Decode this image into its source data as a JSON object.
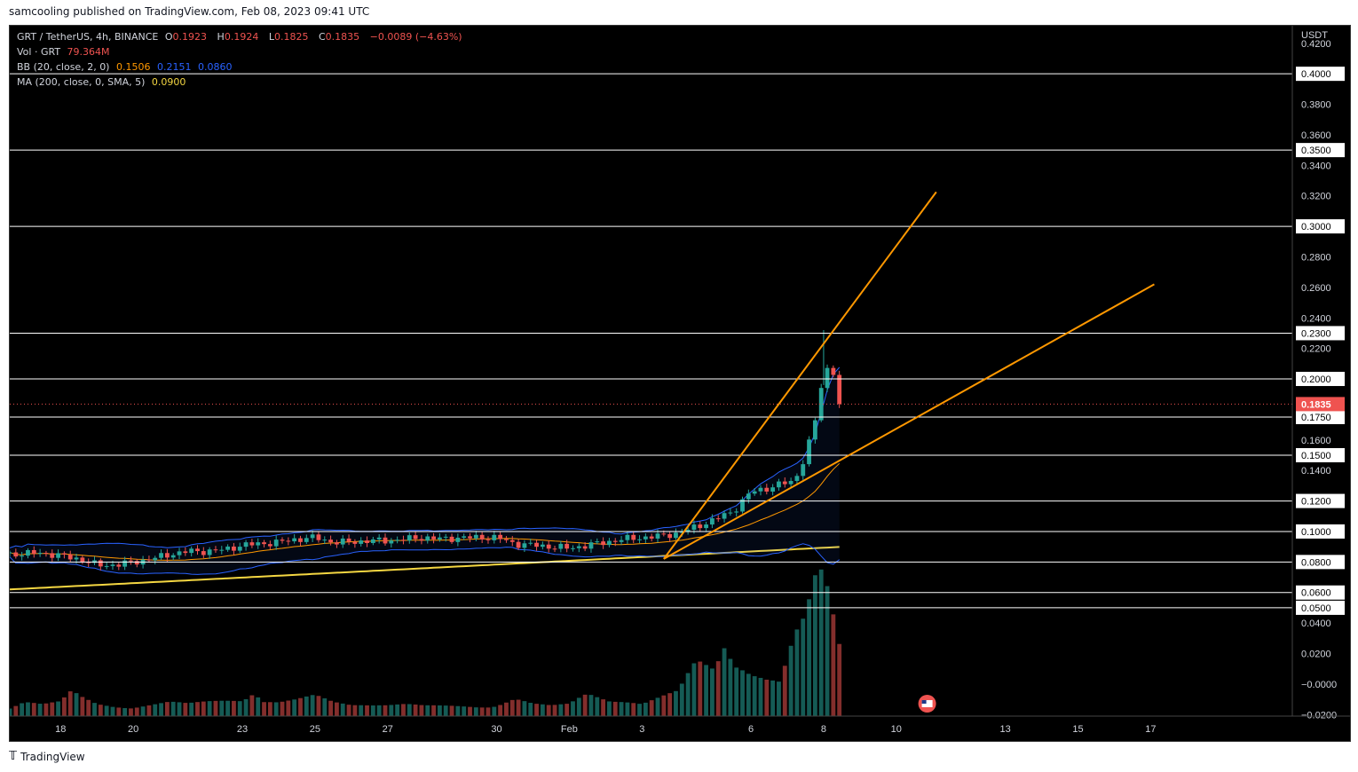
{
  "header": {
    "caption": "samcooling published on TradingView.com, Feb 08, 2023 09:41 UTC"
  },
  "legend": {
    "symbol": "GRT / TetherUS, 4h, BINANCE",
    "o_label": "O",
    "o": "0.1923",
    "h_label": "H",
    "h": "0.1924",
    "l_label": "L",
    "l": "0.1825",
    "c_label": "C",
    "c": "0.1835",
    "change": "−0.0089 (−4.63%)",
    "vol_label": "Vol · GRT",
    "vol": "79.364M",
    "bb_label": "BB (20, close, 2, 0)",
    "bb_basis": "0.1506",
    "bb_upper": "0.2151",
    "bb_lower": "0.0860",
    "ma_label": "MA (200, close, 0, SMA, 5)",
    "ma": "0.0900"
  },
  "footer": {
    "brand": "TradingView"
  },
  "colors": {
    "up": "#26a69a",
    "down": "#ef5350",
    "bb_basis": "#ff9800",
    "bb_band": "#2962ff",
    "ma": "#f5d742",
    "trendline": "#ff9800",
    "level": "#ffffff",
    "price_tag": "#ef5350"
  },
  "chart_data": {
    "type": "candlestick",
    "title": "GRT / TetherUS, 4h, BINANCE",
    "currency_label": "USDT",
    "y_ticks": [
      "0.4200",
      "0.3800",
      "0.3600",
      "0.3400",
      "0.3200",
      "0.2800",
      "0.2600",
      "0.2400",
      "0.2200",
      "0.1600",
      "0.1400",
      "0.0400",
      "0.0200",
      "−0.0000",
      "−0.0200"
    ],
    "level_labels": [
      "0.4000",
      "0.3500",
      "0.3000",
      "0.2300",
      "0.2000",
      "0.1750",
      "0.1500",
      "0.1200",
      "0.1000",
      "0.0800",
      "0.0600",
      "0.0500"
    ],
    "horizontal_levels": [
      0.4,
      0.35,
      0.3,
      0.23,
      0.2,
      0.175,
      0.15,
      0.12,
      0.1,
      0.08,
      0.06,
      0.05
    ],
    "last_price": 0.1835,
    "last_price_label": "0.1835",
    "x_ticks": [
      {
        "label": "18",
        "day": 18
      },
      {
        "label": "20",
        "day": 20
      },
      {
        "label": "23",
        "day": 23
      },
      {
        "label": "25",
        "day": 25
      },
      {
        "label": "27",
        "day": 27
      },
      {
        "label": "30",
        "day": 30
      },
      {
        "label": "Feb",
        "day": 32
      },
      {
        "label": "3",
        "day": 34
      },
      {
        "label": "6",
        "day": 37
      },
      {
        "label": "8",
        "day": 39
      },
      {
        "label": "10",
        "day": 41
      },
      {
        "label": "13",
        "day": 44
      },
      {
        "label": "15",
        "day": 46
      },
      {
        "label": "17",
        "day": 48
      }
    ],
    "x_range_days": [
      16.6,
      51.9
    ],
    "y_range": [
      -0.021,
      0.4315
    ],
    "price_anchors": [
      [
        16.6,
        0.085
      ],
      [
        17.5,
        0.086
      ],
      [
        18.0,
        0.084
      ],
      [
        18.5,
        0.082
      ],
      [
        19.0,
        0.078
      ],
      [
        19.5,
        0.078
      ],
      [
        20.0,
        0.08
      ],
      [
        20.5,
        0.082
      ],
      [
        21.0,
        0.085
      ],
      [
        21.5,
        0.087
      ],
      [
        22.0,
        0.087
      ],
      [
        22.5,
        0.088
      ],
      [
        23.0,
        0.091
      ],
      [
        23.5,
        0.092
      ],
      [
        24.0,
        0.093
      ],
      [
        24.5,
        0.095
      ],
      [
        25.0,
        0.096
      ],
      [
        25.5,
        0.093
      ],
      [
        26.0,
        0.093
      ],
      [
        26.5,
        0.094
      ],
      [
        27.0,
        0.094
      ],
      [
        27.5,
        0.095
      ],
      [
        28.0,
        0.096
      ],
      [
        28.5,
        0.095
      ],
      [
        29.0,
        0.096
      ],
      [
        29.5,
        0.096
      ],
      [
        30.0,
        0.096
      ],
      [
        30.5,
        0.092
      ],
      [
        31.0,
        0.091
      ],
      [
        31.5,
        0.09
      ],
      [
        32.0,
        0.089
      ],
      [
        32.5,
        0.091
      ],
      [
        33.0,
        0.093
      ],
      [
        33.5,
        0.095
      ],
      [
        34.0,
        0.096
      ],
      [
        34.5,
        0.097
      ],
      [
        35.0,
        0.099
      ],
      [
        35.5,
        0.103
      ],
      [
        36.0,
        0.108
      ],
      [
        36.5,
        0.113
      ],
      [
        37.0,
        0.126
      ],
      [
        37.4,
        0.128
      ],
      [
        37.8,
        0.131
      ],
      [
        38.2,
        0.133
      ],
      [
        38.5,
        0.15
      ],
      [
        38.8,
        0.175
      ],
      [
        39.0,
        0.205
      ],
      [
        39.2,
        0.208
      ],
      [
        39.35,
        0.2
      ],
      [
        39.55,
        0.1835
      ]
    ],
    "volume_anchors": [
      [
        16.6,
        5
      ],
      [
        17.0,
        8
      ],
      [
        17.5,
        6
      ],
      [
        18.0,
        7
      ],
      [
        18.3,
        12
      ],
      [
        18.6,
        9
      ],
      [
        19.0,
        6
      ],
      [
        19.5,
        5
      ],
      [
        20.0,
        5
      ],
      [
        20.5,
        6
      ],
      [
        21.0,
        7
      ],
      [
        21.5,
        6
      ],
      [
        22.0,
        7
      ],
      [
        22.5,
        8
      ],
      [
        23.0,
        9
      ],
      [
        23.3,
        14
      ],
      [
        23.6,
        8
      ],
      [
        24.0,
        7
      ],
      [
        24.5,
        8
      ],
      [
        25.0,
        10
      ],
      [
        25.5,
        7
      ],
      [
        26.0,
        6
      ],
      [
        26.5,
        7
      ],
      [
        27.0,
        6
      ],
      [
        27.5,
        6
      ],
      [
        28.0,
        5
      ],
      [
        28.5,
        5
      ],
      [
        29.0,
        5
      ],
      [
        29.5,
        5
      ],
      [
        30.0,
        6
      ],
      [
        30.5,
        9
      ],
      [
        31.0,
        6
      ],
      [
        31.5,
        5
      ],
      [
        32.0,
        6
      ],
      [
        32.5,
        12
      ],
      [
        33.0,
        10
      ],
      [
        33.5,
        8
      ],
      [
        34.0,
        6
      ],
      [
        34.5,
        9
      ],
      [
        35.0,
        12
      ],
      [
        35.5,
        28
      ],
      [
        36.0,
        26
      ],
      [
        36.3,
        44
      ],
      [
        36.6,
        30
      ],
      [
        37.0,
        22
      ],
      [
        37.4,
        18
      ],
      [
        37.8,
        16
      ],
      [
        38.2,
        38
      ],
      [
        38.5,
        48
      ],
      [
        38.8,
        72
      ],
      [
        39.0,
        76
      ],
      [
        39.2,
        62
      ],
      [
        39.4,
        46
      ],
      [
        39.55,
        30
      ]
    ],
    "volume_max": 80,
    "trendlines": [
      {
        "from": [
          34.6,
          0.082
        ],
        "to": [
          42.1,
          0.3225
        ]
      },
      {
        "from": [
          34.6,
          0.082
        ],
        "to": [
          48.1,
          0.262
        ]
      }
    ]
  }
}
